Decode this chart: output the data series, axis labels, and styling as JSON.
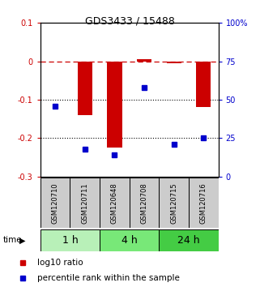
{
  "title": "GDS3433 / 15488",
  "samples": [
    "GSM120710",
    "GSM120711",
    "GSM120648",
    "GSM120708",
    "GSM120715",
    "GSM120716"
  ],
  "log10_ratio": [
    0.0,
    -0.14,
    -0.225,
    0.005,
    -0.005,
    -0.12
  ],
  "percentile_rank": [
    46,
    18,
    14,
    58,
    21,
    25
  ],
  "time_groups": [
    {
      "label": "1 h",
      "samples": [
        0,
        1
      ],
      "color": "#b8f0b8"
    },
    {
      "label": "4 h",
      "samples": [
        2,
        3
      ],
      "color": "#78e878"
    },
    {
      "label": "24 h",
      "samples": [
        4,
        5
      ],
      "color": "#44cc44"
    }
  ],
  "ylim_left": [
    -0.3,
    0.1
  ],
  "ylim_right": [
    0,
    100
  ],
  "yticks_left": [
    0.1,
    0.0,
    -0.1,
    -0.2,
    -0.3
  ],
  "yticks_right": [
    100,
    75,
    50,
    25,
    0
  ],
  "bar_color": "#cc0000",
  "dot_color": "#0000cc",
  "hline_y": 0.0,
  "dotted_lines": [
    -0.1,
    -0.2
  ],
  "background_color": "#ffffff",
  "plot_bg": "#ffffff",
  "sample_box_color": "#cccccc",
  "title_fontsize": 9,
  "tick_fontsize": 7,
  "sample_fontsize": 6,
  "time_fontsize": 9,
  "legend_fontsize": 7.5
}
